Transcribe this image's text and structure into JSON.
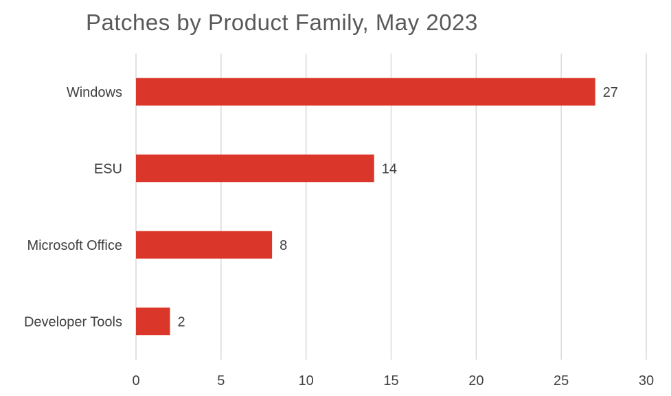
{
  "chart_data": {
    "type": "bar",
    "orientation": "horizontal",
    "title": "Patches by Product Family, May 2023",
    "categories": [
      "Windows",
      "ESU",
      "Microsoft Office",
      "Developer Tools"
    ],
    "values": [
      27,
      14,
      8,
      2
    ],
    "xlabel": "",
    "ylabel": "",
    "xlim": [
      0,
      30
    ],
    "xticks": [
      "0",
      "5",
      "10",
      "15",
      "20",
      "25",
      "30"
    ],
    "grid": true,
    "legend": "none",
    "bar_color": "#DA372A",
    "grid_color": "#D9D9D9"
  }
}
